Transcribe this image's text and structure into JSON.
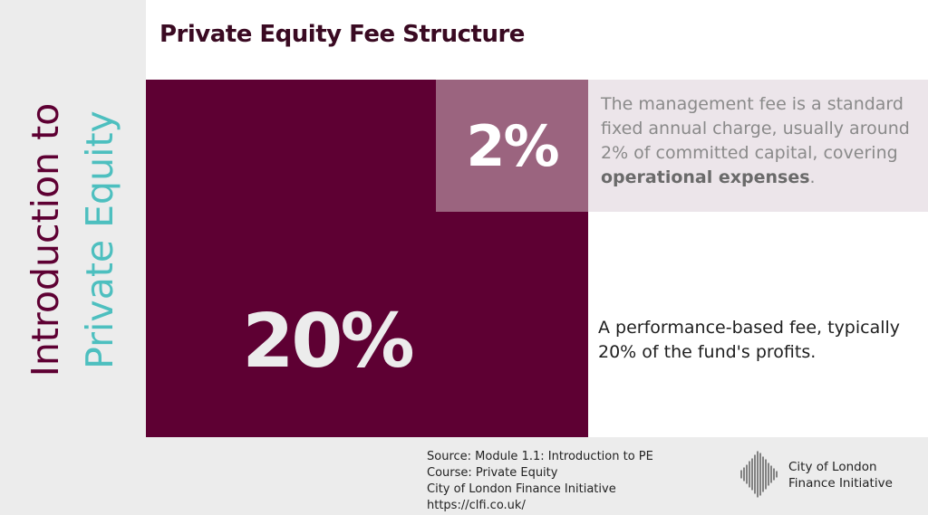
{
  "sidebar": {
    "title_line1": "Introduction to",
    "title_line2": "Private Equity"
  },
  "header": {
    "title": "Private Equity Fee Structure"
  },
  "management_fee": {
    "percent": "2%",
    "desc_prefix": "The management fee is a standard fixed annual charge, usually around 2% of committed capital, covering ",
    "desc_bold": "operational expenses",
    "desc_suffix": "."
  },
  "performance_fee": {
    "percent": "20%",
    "desc": "A performance-based fee, typically 20% of the fund's profits."
  },
  "footer": {
    "source_lines": [
      "Source: Module 1.1: Introduction to PE",
      "Course: Private Equity",
      "City of London Finance Initiative",
      "https://clfi.co.uk/"
    ],
    "org_line1": "City of London",
    "org_line2": "Finance Initiative"
  },
  "colors": {
    "accent_dark": "#5e0033",
    "accent_light": "#4dbfbf",
    "box_mid": "#9b647f"
  }
}
